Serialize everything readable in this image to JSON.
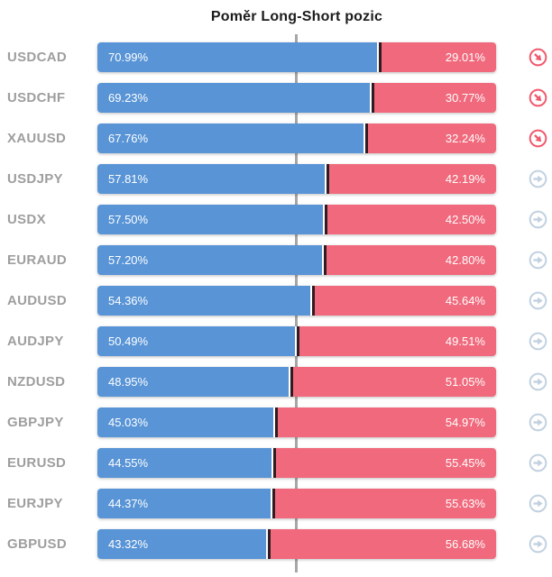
{
  "title": "Poměr Long-Short pozic",
  "colors": {
    "long": "#5894d6",
    "short": "#f0697c",
    "label": "#9e9e9e",
    "centerline": "#a7a7a7",
    "divider": "#2f1b22",
    "icon_sell": "#f15a6e",
    "icon_neutral": "#c2d1e0",
    "bar_text": "#ffffff"
  },
  "chart_data": {
    "type": "bar",
    "subtype": "horizontal-stacked-ratio",
    "title": "Poměr Long-Short pozic",
    "xlim": [
      0,
      100
    ],
    "center_reference": 50,
    "grid": false,
    "legend": false,
    "categories": [
      "USDCAD",
      "USDCHF",
      "XAUUSD",
      "USDJPY",
      "USDX",
      "EURAUD",
      "AUDUSD",
      "AUDJPY",
      "NZDUSD",
      "GBPJPY",
      "EURUSD",
      "EURJPY",
      "GBPUSD"
    ],
    "series": [
      {
        "name": "Long",
        "values": [
          70.99,
          69.23,
          67.76,
          57.81,
          57.5,
          57.2,
          54.36,
          50.49,
          48.95,
          45.03,
          44.55,
          44.37,
          43.32
        ]
      },
      {
        "name": "Short",
        "values": [
          29.01,
          30.77,
          32.24,
          42.19,
          42.5,
          42.8,
          45.64,
          49.51,
          51.05,
          54.97,
          55.45,
          55.63,
          56.68
        ]
      }
    ],
    "rows": [
      {
        "symbol": "USDCAD",
        "long_pct": 70.99,
        "short_pct": 29.01,
        "long_label": "70.99%",
        "short_label": "29.01%",
        "trend": "down-right"
      },
      {
        "symbol": "USDCHF",
        "long_pct": 69.23,
        "short_pct": 30.77,
        "long_label": "69.23%",
        "short_label": "30.77%",
        "trend": "down-right"
      },
      {
        "symbol": "XAUUSD",
        "long_pct": 67.76,
        "short_pct": 32.24,
        "long_label": "67.76%",
        "short_label": "32.24%",
        "trend": "down-right"
      },
      {
        "symbol": "USDJPY",
        "long_pct": 57.81,
        "short_pct": 42.19,
        "long_label": "57.81%",
        "short_label": "42.19%",
        "trend": "right"
      },
      {
        "symbol": "USDX",
        "long_pct": 57.5,
        "short_pct": 42.5,
        "long_label": "57.50%",
        "short_label": "42.50%",
        "trend": "right"
      },
      {
        "symbol": "EURAUD",
        "long_pct": 57.2,
        "short_pct": 42.8,
        "long_label": "57.20%",
        "short_label": "42.80%",
        "trend": "right"
      },
      {
        "symbol": "AUDUSD",
        "long_pct": 54.36,
        "short_pct": 45.64,
        "long_label": "54.36%",
        "short_label": "45.64%",
        "trend": "right"
      },
      {
        "symbol": "AUDJPY",
        "long_pct": 50.49,
        "short_pct": 49.51,
        "long_label": "50.49%",
        "short_label": "49.51%",
        "trend": "right"
      },
      {
        "symbol": "NZDUSD",
        "long_pct": 48.95,
        "short_pct": 51.05,
        "long_label": "48.95%",
        "short_label": "51.05%",
        "trend": "right"
      },
      {
        "symbol": "GBPJPY",
        "long_pct": 45.03,
        "short_pct": 54.97,
        "long_label": "45.03%",
        "short_label": "54.97%",
        "trend": "right"
      },
      {
        "symbol": "EURUSD",
        "long_pct": 44.55,
        "short_pct": 55.45,
        "long_label": "44.55%",
        "short_label": "55.45%",
        "trend": "right"
      },
      {
        "symbol": "EURJPY",
        "long_pct": 44.37,
        "short_pct": 55.63,
        "long_label": "44.37%",
        "short_label": "55.63%",
        "trend": "right"
      },
      {
        "symbol": "GBPUSD",
        "long_pct": 43.32,
        "short_pct": 56.68,
        "long_label": "43.32%",
        "short_label": "56.68%",
        "trend": "right"
      }
    ]
  }
}
